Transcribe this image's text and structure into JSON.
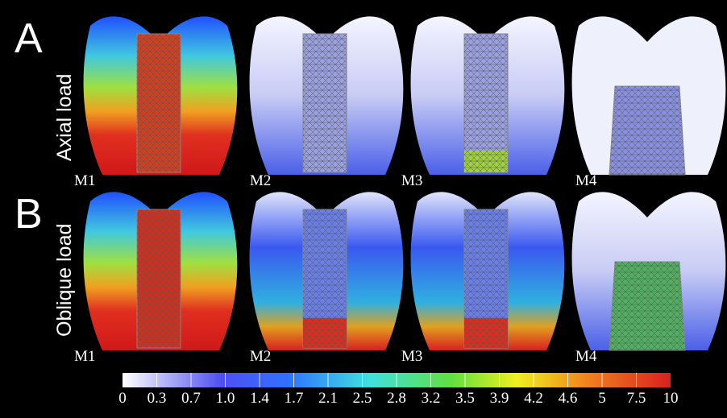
{
  "rows": [
    {
      "letter": "A",
      "label": "Axial load",
      "models": [
        "M1",
        "M2",
        "M3",
        "M4"
      ]
    },
    {
      "letter": "B",
      "label": "Oblique load",
      "models": [
        "M1",
        "M2",
        "M3",
        "M4"
      ]
    }
  ],
  "colorbar": {
    "ticks": [
      "0",
      "0.3",
      "0.7",
      "1.0",
      "1.4",
      "1.7",
      "2.1",
      "2.5",
      "2.8",
      "3.2",
      "3.5",
      "3.9",
      "4.2",
      "4.6",
      "5",
      "7.5",
      "10"
    ]
  }
}
